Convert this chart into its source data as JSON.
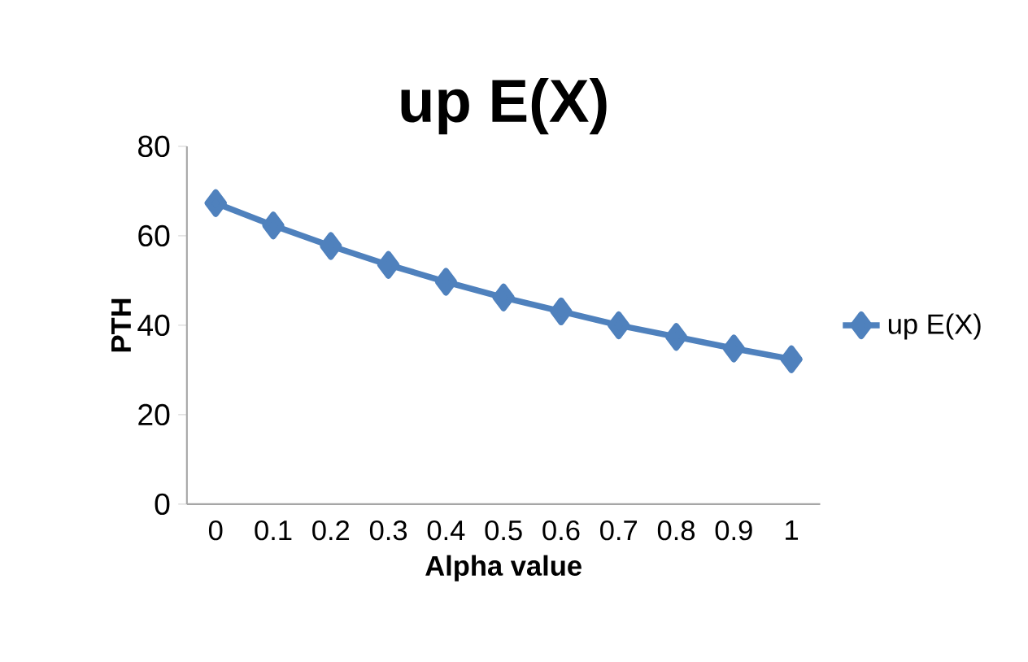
{
  "chart_data": {
    "type": "line",
    "title": "up E(X)",
    "xlabel": "Alpha value",
    "ylabel": "PTH",
    "categories": [
      "0",
      "0.1",
      "0.2",
      "0.3",
      "0.4",
      "0.5",
      "0.6",
      "0.7",
      "0.8",
      "0.9",
      "1"
    ],
    "series": [
      {
        "name": "up E(X)",
        "color": "#4f81bd",
        "values": [
          67.3,
          62.3,
          57.7,
          53.5,
          49.7,
          46.2,
          43.1,
          40.0,
          37.4,
          34.8,
          32.4
        ]
      }
    ],
    "ylim": [
      0,
      80
    ],
    "yticks": [
      0,
      20,
      40,
      60,
      80
    ],
    "grid": false,
    "legend": "right",
    "marker": "diamond",
    "line_style": "solid"
  }
}
